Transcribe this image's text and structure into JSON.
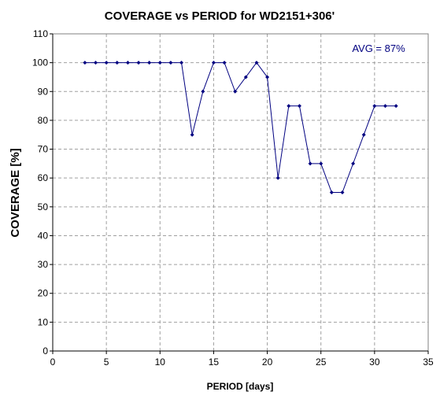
{
  "chart_data": {
    "type": "line",
    "title": "COVERAGE vs PERIOD for WD2151+306'",
    "xlabel": "PERIOD [days]",
    "ylabel": "COVERAGE [%]",
    "xlim": [
      0,
      35
    ],
    "ylim": [
      0,
      110
    ],
    "xticks": [
      0,
      5,
      10,
      15,
      20,
      25,
      30,
      35
    ],
    "yticks": [
      0,
      10,
      20,
      30,
      40,
      50,
      60,
      70,
      80,
      90,
      100,
      110
    ],
    "grid": true,
    "annotation": "AVG = 87%",
    "line_color": "#000080",
    "series": [
      {
        "x": [
          3,
          4,
          5,
          6,
          7,
          8,
          9,
          10,
          11,
          12,
          13,
          14,
          15,
          16,
          17,
          18,
          19,
          20,
          21,
          22,
          23,
          24,
          25,
          26,
          27,
          28,
          29,
          30,
          31,
          32
        ],
        "y": [
          100,
          100,
          100,
          100,
          100,
          100,
          100,
          100,
          100,
          100,
          75,
          90,
          100,
          100,
          90,
          95,
          100,
          95,
          60,
          85,
          85,
          65,
          65,
          55,
          55,
          65,
          75,
          85,
          85,
          85
        ]
      }
    ]
  }
}
